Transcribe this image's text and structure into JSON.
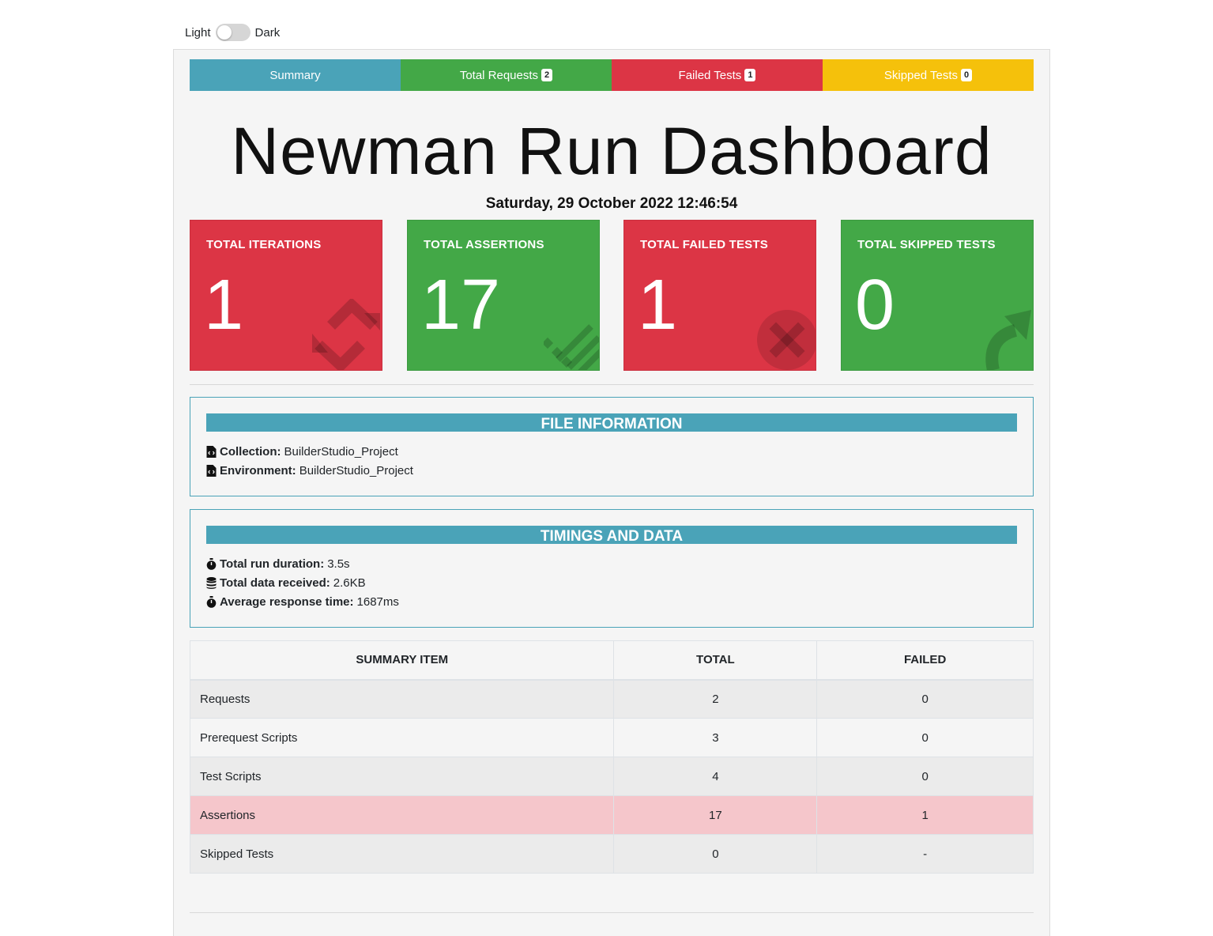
{
  "theme_toggle": {
    "light_label": "Light",
    "dark_label": "Dark"
  },
  "tabs": [
    {
      "label": "Summary",
      "badge": ""
    },
    {
      "label": "Total Requests",
      "badge": "2"
    },
    {
      "label": "Failed Tests",
      "badge": "1"
    },
    {
      "label": "Skipped Tests",
      "badge": "0"
    }
  ],
  "page_title": "Newman Run Dashboard",
  "run_date": "Saturday, 29 October 2022 12:46:54",
  "cards": [
    {
      "title": "TOTAL ITERATIONS",
      "value": "1",
      "icon": "repeat-icon",
      "color": "#dc3545"
    },
    {
      "title": "TOTAL ASSERTIONS",
      "value": "17",
      "icon": "list-check-icon",
      "color": "#43a847"
    },
    {
      "title": "TOTAL FAILED TESTS",
      "value": "1",
      "icon": "times-circle-icon",
      "color": "#dc3545"
    },
    {
      "title": "TOTAL SKIPPED TESTS",
      "value": "0",
      "icon": "share-arrow-icon",
      "color": "#43a847"
    }
  ],
  "file_info": {
    "header": "FILE INFORMATION",
    "collection_label": "Collection:",
    "collection_value": "BuilderStudio_Project",
    "environment_label": "Environment:",
    "environment_value": "BuilderStudio_Project"
  },
  "timings": {
    "header": "TIMINGS AND DATA",
    "duration_label": "Total run duration:",
    "duration_value": "3.5s",
    "data_label": "Total data received:",
    "data_value": "2.6KB",
    "avg_label": "Average response time:",
    "avg_value": "1687ms"
  },
  "summary_table": {
    "headers": [
      "SUMMARY ITEM",
      "TOTAL",
      "FAILED"
    ],
    "rows": [
      {
        "item": "Requests",
        "total": "2",
        "failed": "0"
      },
      {
        "item": "Prerequest Scripts",
        "total": "3",
        "failed": "0"
      },
      {
        "item": "Test Scripts",
        "total": "4",
        "failed": "0"
      },
      {
        "item": "Assertions",
        "total": "17",
        "failed": "1"
      },
      {
        "item": "Skipped Tests",
        "total": "0",
        "failed": "-"
      }
    ]
  },
  "colors": {
    "accent": "#4aa3b8",
    "success": "#43a847",
    "danger": "#dc3545",
    "warning": "#f5c10b"
  }
}
